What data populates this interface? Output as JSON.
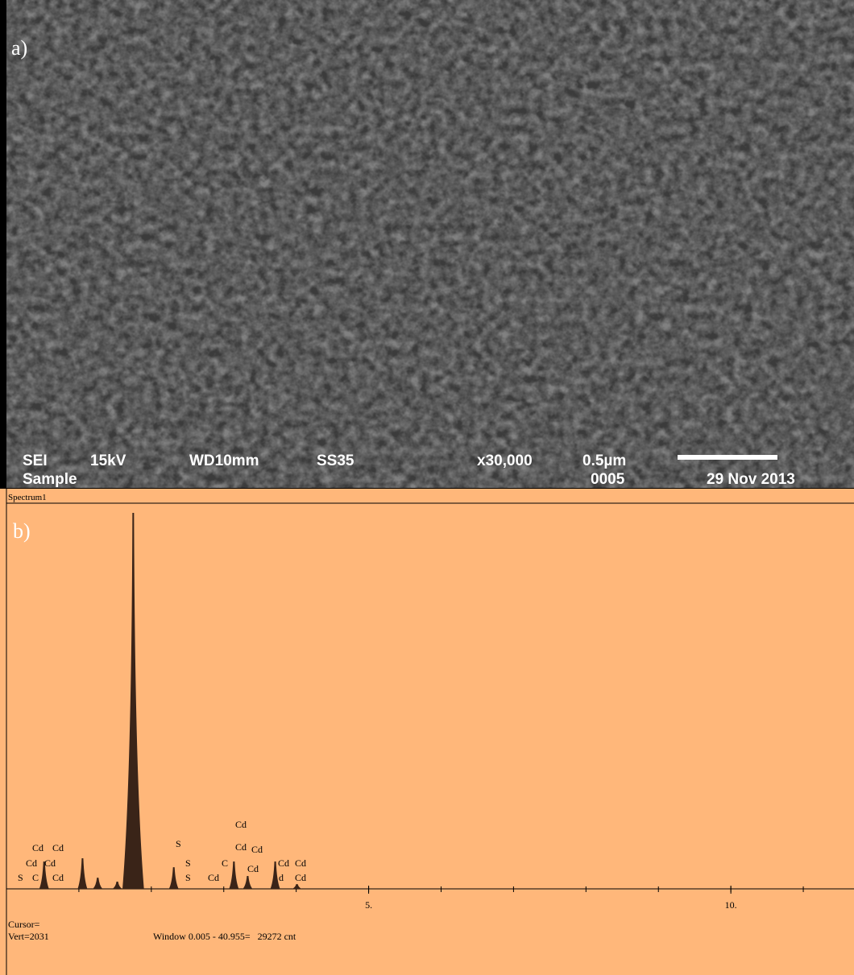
{
  "panel_a": {
    "label": "a)",
    "info": {
      "mode": "SEI",
      "voltage": "15kV",
      "working_distance": "WD10mm",
      "spot_size": "SS35",
      "magnification": "x30,000",
      "scale": "0.5µm",
      "sample": "Sample",
      "image_number": "0005",
      "date": "29 Nov 2013"
    }
  },
  "panel_b": {
    "header": "Spectrum1",
    "label": "b)",
    "chart_data": {
      "type": "spectrum",
      "xlim": [
        0,
        11.7
      ],
      "ylim": [
        0,
        2031
      ],
      "xticks": [
        {
          "value": 5,
          "label": "5."
        },
        {
          "value": 10,
          "label": "10."
        }
      ],
      "x": [
        0.52,
        1.05,
        1.26,
        1.53,
        1.75,
        2.31,
        3.14,
        3.33,
        3.71,
        4.01
      ],
      "values": [
        144,
        161,
        59,
        38,
        1980,
        114,
        144,
        68,
        144,
        25
      ],
      "color": "#3a2418"
    },
    "element_labels": [
      "Cd",
      "Cd",
      "Cd",
      "Cd",
      "S",
      "C",
      "Cd",
      "S",
      "S",
      "S",
      "Cd",
      "C",
      "Cd",
      "Cd",
      "Cd",
      "Cd",
      "Cd",
      "Cd",
      "d",
      "Cd"
    ],
    "cursor": "Cursor=",
    "vert": "Vert=2031",
    "window": "Window 0.005 - 40.955=   29272 cnt"
  }
}
